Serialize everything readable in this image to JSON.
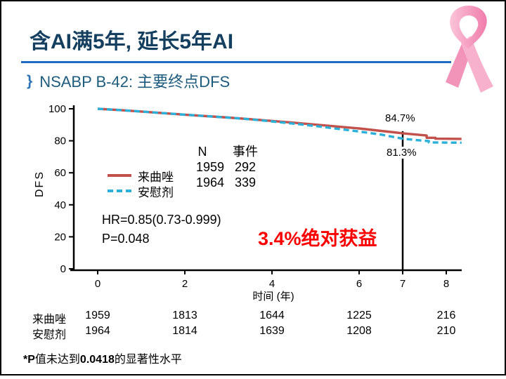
{
  "slide": {
    "title": "含AI满5年, 延长5年AI",
    "subtitle_bullet": "}",
    "subtitle": "NSABP B-42: 主要终点DFS"
  },
  "colors": {
    "title": "#153f5f",
    "subtitle": "#1e5c7d",
    "bullet": "#2e75b6",
    "rule": "#1e6bbf",
    "letrozole": "#c2504b",
    "placebo": "#2ab0d9",
    "benefit_text": "#fe0000"
  },
  "chart_data": {
    "type": "line",
    "xlabel": "时间 (年)",
    "ylabel": "DFS",
    "xlim": [
      0,
      8.4
    ],
    "ylim": [
      0,
      100
    ],
    "x_ticks": [
      0,
      2,
      4,
      6,
      7,
      8
    ],
    "y_ticks": [
      0,
      20,
      40,
      60,
      80,
      100
    ],
    "grid": "off",
    "legend_position": "inside-left",
    "reference_line_x": 7,
    "series": [
      {
        "name": "来曲唑",
        "style": "solid",
        "color": "#c2504b",
        "n": "1959",
        "events": "292",
        "rate_at_7y": "84.7%",
        "points": [
          [
            0,
            100
          ],
          [
            0.5,
            99.2
          ],
          [
            1,
            98.3
          ],
          [
            1.5,
            97.3
          ],
          [
            2,
            96.3
          ],
          [
            2.5,
            95.4
          ],
          [
            3,
            94.5
          ],
          [
            3.5,
            93.5
          ],
          [
            4,
            92.4
          ],
          [
            4.5,
            91.3
          ],
          [
            5,
            90.1
          ],
          [
            5.5,
            88.9
          ],
          [
            6,
            87.7
          ],
          [
            6.5,
            86.2
          ],
          [
            6.8,
            85.3
          ],
          [
            7,
            84.7
          ],
          [
            7.35,
            83.8
          ],
          [
            7.55,
            83.3
          ],
          [
            7.55,
            81.9
          ],
          [
            7.75,
            81.9
          ],
          [
            7.75,
            81.3
          ],
          [
            8.35,
            81.2
          ]
        ]
      },
      {
        "name": "安慰剂",
        "style": "dashed",
        "color": "#2ab0d9",
        "n": "1964",
        "events": "339",
        "rate_at_7y": "81.3%",
        "points": [
          [
            0,
            100
          ],
          [
            0.5,
            99.2
          ],
          [
            1,
            98.3
          ],
          [
            1.5,
            97.3
          ],
          [
            2,
            96.3
          ],
          [
            2.5,
            95.4
          ],
          [
            3,
            94.5
          ],
          [
            3.5,
            93.4
          ],
          [
            4,
            92.1
          ],
          [
            4.5,
            90.7
          ],
          [
            5,
            89.2
          ],
          [
            5.5,
            87.5
          ],
          [
            6,
            85.8
          ],
          [
            6.5,
            83.9
          ],
          [
            7,
            81.3
          ],
          [
            7.3,
            80.5
          ],
          [
            7.6,
            79.8
          ],
          [
            7.6,
            79.0
          ],
          [
            7.9,
            78.9
          ],
          [
            8.35,
            78.8
          ]
        ]
      }
    ]
  },
  "legend": {
    "items": [
      {
        "label": "来曲唑"
      },
      {
        "label": "安慰剂"
      }
    ]
  },
  "counts": {
    "header_n": "N",
    "header_events": "事件",
    "rows": [
      {
        "n": "1959",
        "events": "292"
      },
      {
        "n": "1964",
        "events": "339"
      }
    ]
  },
  "stats": {
    "hr": "HR=0.85(0.73-0.999)",
    "p": "P=0.048",
    "benefit": "3.4%绝对获益"
  },
  "rates": {
    "letrozole": "84.7%",
    "placebo": "81.3%"
  },
  "atrisk": {
    "rows": [
      {
        "label": "来曲唑",
        "values": [
          "1959",
          "1813",
          "1644",
          "1225",
          "216"
        ]
      },
      {
        "label": "安慰剂",
        "values": [
          "1964",
          "1814",
          "1639",
          "1208",
          "210"
        ]
      }
    ],
    "tick_positions": [
      0,
      2,
      4,
      6,
      8
    ]
  },
  "footnote": {
    "p1": "*P",
    "p2": "值未达到",
    "p3": "0.0418",
    "p4": "的显著性水平"
  }
}
